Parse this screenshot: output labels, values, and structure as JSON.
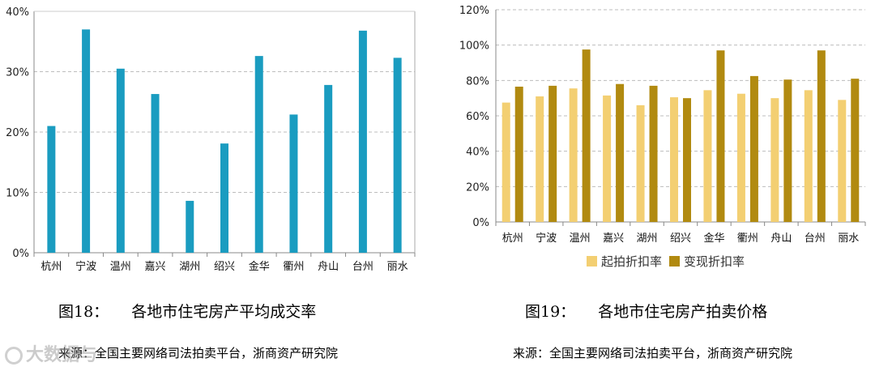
{
  "chart_data": [
    {
      "type": "bar",
      "title": "各地市住宅房产平均成交率",
      "fig_label": "图18：",
      "source": "来源：全国主要网络司法拍卖平台，浙商资产研究院",
      "categories": [
        "杭州",
        "宁波",
        "温州",
        "嘉兴",
        "湖州",
        "绍兴",
        "金华",
        "衢州",
        "舟山",
        "台州",
        "丽水"
      ],
      "series": [
        {
          "name": "平均成交率",
          "values": [
            21,
            37,
            30.5,
            26.3,
            8.6,
            18.1,
            32.6,
            22.9,
            27.8,
            36.8,
            32.3
          ],
          "color": "#1a9cc0"
        }
      ],
      "ylim": [
        0,
        40
      ],
      "yticks": [
        0,
        10,
        20,
        30,
        40
      ],
      "ytick_labels": [
        "0%",
        "10%",
        "20%",
        "30%",
        "40%"
      ],
      "grid": true,
      "legend": "none"
    },
    {
      "type": "bar",
      "title": "各地市住宅房产拍卖价格",
      "fig_label": "图19：",
      "source": "来源：全国主要网络司法拍卖平台，浙商资产研究院",
      "categories": [
        "杭州",
        "宁波",
        "温州",
        "嘉兴",
        "湖州",
        "绍兴",
        "金华",
        "衢州",
        "舟山",
        "台州",
        "丽水"
      ],
      "series": [
        {
          "name": "起拍折扣率",
          "values": [
            67.5,
            71,
            75.5,
            71.5,
            66,
            70.5,
            74.5,
            72.5,
            70,
            74.5,
            69
          ],
          "color": "#f3cf72"
        },
        {
          "name": "变现折扣率",
          "values": [
            76.5,
            77,
            97.5,
            78,
            77,
            70,
            97,
            82.5,
            80.5,
            97,
            81
          ],
          "color": "#b18a10"
        }
      ],
      "ylim": [
        0,
        120
      ],
      "yticks": [
        0,
        20,
        40,
        60,
        80,
        100,
        120
      ],
      "ytick_labels": [
        "0%",
        "20%",
        "40%",
        "60%",
        "80%",
        "100%",
        "120%"
      ],
      "grid": true,
      "legend": "bottom"
    }
  ],
  "watermark": {
    "text": "大数据与"
  }
}
